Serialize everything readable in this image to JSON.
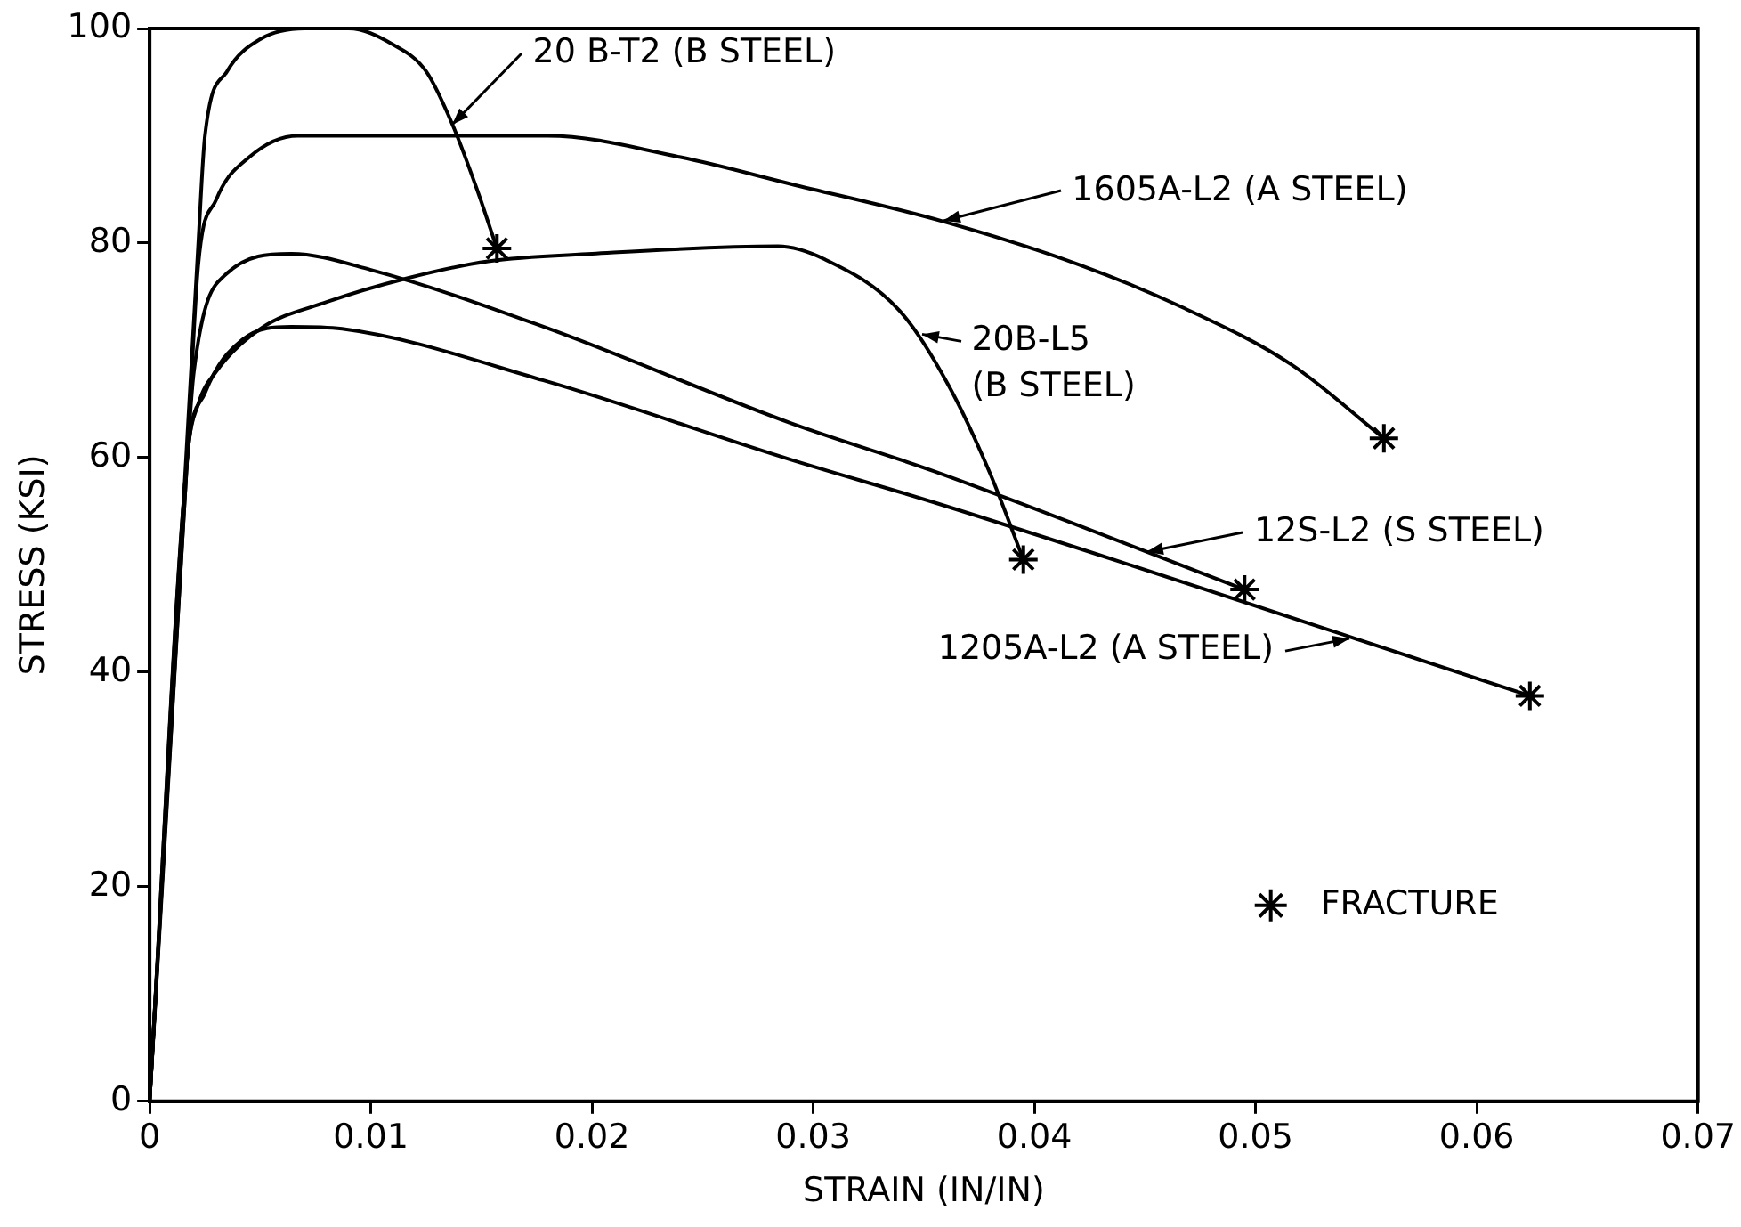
{
  "chart_data": {
    "type": "line",
    "xlabel": "STRAIN (IN/IN)",
    "ylabel": "STRESS (KSI)",
    "xlim": [
      0,
      0.07
    ],
    "xticks": [
      0,
      {
        "value": 0.01,
        "label": "0.01"
      },
      {
        "value": 0.02,
        "label": "0.02"
      },
      {
        "value": 0.03,
        "label": "0.03"
      },
      {
        "value": 0.04,
        "label": "0.04"
      },
      {
        "value": 0.05,
        "label": "0.05"
      },
      {
        "value": 0.06,
        "label": "0.06"
      },
      {
        "value": 0.07,
        "label": "0.07"
      }
    ],
    "ylim": [
      0,
      100
    ],
    "yticks": [
      0,
      20,
      40,
      60,
      80,
      100
    ],
    "grid": false,
    "legend": "bottom right",
    "line_style": "solid",
    "series": [
      {
        "color": "#000000",
        "marker": "none",
        "x": [
          0,
          0.0022,
          0.0025,
          0.0035,
          0.005,
          0.007,
          0.009,
          0.011,
          0.0125,
          0.0137,
          0.0148,
          0.0157
        ],
        "values": [
          0,
          80,
          90,
          96,
          99,
          100,
          100,
          98.5,
          96,
          91,
          85,
          79.5
        ]
      },
      {
        "color": "#000000",
        "marker": "none",
        "x": [
          0,
          0.0017,
          0.0022,
          0.003,
          0.0045,
          0.0067,
          0.018,
          0.024,
          0.029,
          0.0359,
          0.042,
          0.0467,
          0.0516,
          0.0558
        ],
        "values": [
          0,
          60,
          78,
          84,
          88,
          90,
          90,
          88,
          85.5,
          82,
          78,
          74,
          68.7,
          61.8
        ]
      },
      {
        "color": "#000000",
        "marker": "none",
        "x": [
          0,
          0.0017,
          0.0022,
          0.003,
          0.005,
          0.008,
          0.0116,
          0.0153,
          0.02,
          0.0284,
          0.0305,
          0.0339,
          0.0361,
          0.038,
          0.0395
        ],
        "values": [
          0,
          60,
          65,
          68,
          72,
          74.5,
          76.7,
          78.3,
          79,
          79.7,
          78.5,
          73.7,
          66.8,
          58.5,
          50.5
        ]
      },
      {
        "color": "#000000",
        "marker": "none",
        "x": [
          0,
          0.0017,
          0.002,
          0.0034,
          0.0064,
          0.01,
          0.0178,
          0.029,
          0.0355,
          0.0495
        ],
        "values": [
          0,
          60,
          68,
          77,
          79,
          77.5,
          72.2,
          63.2,
          58.7,
          47.7
        ]
      },
      {
        "color": "#000000",
        "marker": "none",
        "x": [
          0,
          0.0017,
          0.0025,
          0.0042,
          0.0064,
          0.0087,
          0.0178,
          0.029,
          0.0355,
          0.0624
        ],
        "values": [
          0,
          60,
          66,
          71,
          72.2,
          72,
          67.2,
          59.8,
          55.8,
          37.8
        ]
      },
      {
        "name": "FRACTURE",
        "type": "scatter",
        "color": "#000000",
        "marker": "cross",
        "x": [
          0.0157,
          0.0558,
          0.0395,
          0.0495,
          0.0624
        ],
        "values": [
          79.5,
          61.8,
          50.5,
          47.7,
          37.8
        ]
      }
    ],
    "annotations": [
      {
        "text": "20 B-T2 (B STEEL)",
        "x": 0.0137,
        "y": 91
      },
      {
        "text": "1605A-L2 (A STEEL)",
        "x": 0.0359,
        "y": 82
      },
      {
        "text": "20B-L5 (B STEEL)",
        "x": 0.0349,
        "y": 71.5
      },
      {
        "text": "12S-L2 (S STEEL)",
        "x": 0.0451,
        "y": 51.2
      },
      {
        "text": "1205A-L2 (A STEEL)",
        "x": 0.0542,
        "y": 43.2
      }
    ]
  }
}
